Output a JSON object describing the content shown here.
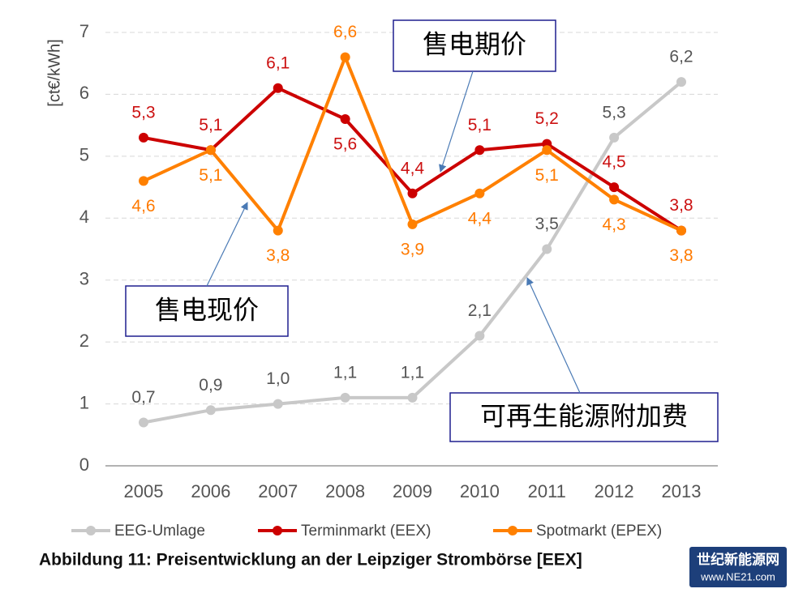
{
  "chart_data": {
    "type": "line",
    "title": "Abbildung 11: Preisentwicklung an der Leipziger Strombörse [EEX]",
    "ylabel": "[ct€/kWh]",
    "categories": [
      "2005",
      "2006",
      "2007",
      "2008",
      "2009",
      "2010",
      "2011",
      "2012",
      "2013"
    ],
    "series": [
      {
        "name": "EEG-Umlage",
        "color": "#c8c8c8",
        "values": [
          0.7,
          0.9,
          1.0,
          1.1,
          1.1,
          2.1,
          3.5,
          5.3,
          6.2
        ],
        "value_labels": [
          "0,7",
          "0,9",
          "1,0",
          "1,1",
          "1,1",
          "2,1",
          "3,5",
          "5,3",
          "6,2"
        ]
      },
      {
        "name": "Terminmarkt (EEX)",
        "color": "#cc0000",
        "values": [
          5.3,
          5.1,
          6.1,
          5.6,
          4.4,
          5.1,
          5.2,
          4.5,
          3.8
        ],
        "value_labels": [
          "5,3",
          "5,1",
          "6,1",
          "5,6",
          "4,4",
          "5,1",
          "5,2",
          "4,5",
          "3,8"
        ]
      },
      {
        "name": "Spotmarkt (EPEX)",
        "color": "#ff8000",
        "values": [
          4.6,
          5.1,
          3.8,
          6.6,
          3.9,
          4.4,
          5.1,
          4.3,
          3.8
        ],
        "value_labels": [
          "4,6",
          "5,1",
          "3,8",
          "6,6",
          "3,9",
          "4,4",
          "5,1",
          "4,3",
          "3,8"
        ]
      }
    ],
    "ylim": [
      0,
      7
    ],
    "yticks": [
      0,
      1,
      2,
      3,
      4,
      5,
      6,
      7
    ],
    "grid": true,
    "annotations": [
      "售电期价",
      "售电现价",
      "可再生能源附加费"
    ]
  },
  "watermark": {
    "name": "世纪新能源网",
    "url": "www.NE21.com"
  }
}
